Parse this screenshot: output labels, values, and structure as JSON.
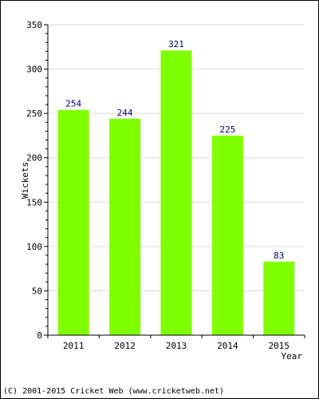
{
  "chart_data": {
    "type": "bar",
    "title": "",
    "xlabel": "Year",
    "ylabel": "Wickets",
    "categories": [
      "2011",
      "2012",
      "2013",
      "2014",
      "2015"
    ],
    "series": [
      {
        "values": [
          254,
          244,
          321,
          225,
          83
        ]
      }
    ],
    "data_labels": [
      "254",
      "244",
      "321",
      "225",
      "83"
    ],
    "ylim": [
      0,
      350
    ],
    "yticks": [
      0,
      50,
      100,
      150,
      200,
      250,
      300,
      350
    ],
    "ytick_labels": [
      "0",
      "50",
      "100",
      "150",
      "200",
      "250",
      "300",
      "350"
    ],
    "grid": true,
    "legend": "none",
    "colors": {
      "bar": "#80ff00",
      "data_label": "#000080",
      "grid": "#d9d9d9",
      "axis": "#000000"
    }
  },
  "footer": {
    "copyright": "(C) 2001-2015 Cricket Web (www.cricketweb.net)"
  }
}
